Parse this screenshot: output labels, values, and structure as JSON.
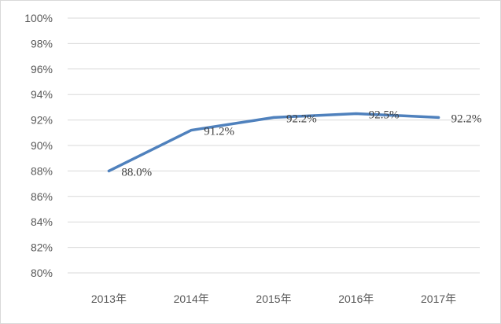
{
  "chart_data": {
    "type": "line",
    "title": "",
    "xlabel": "",
    "ylabel": "",
    "categories": [
      "2013年",
      "2014年",
      "2015年",
      "2016年",
      "2017年"
    ],
    "series": [
      {
        "values": [
          88.0,
          91.2,
          92.2,
          92.5,
          92.2
        ],
        "color": "#4f81bd"
      }
    ],
    "data_labels": [
      "88.0%",
      "91.2%",
      "92.2%",
      "92.5%",
      "92.2%"
    ],
    "ylim": [
      80,
      100
    ],
    "yticks": [
      80,
      82,
      84,
      86,
      88,
      90,
      92,
      94,
      96,
      98,
      100
    ],
    "ytick_labels": [
      "80%",
      "82%",
      "84%",
      "86%",
      "88%",
      "90%",
      "92%",
      "94%",
      "96%",
      "98%",
      "100%"
    ],
    "grid": true,
    "legend": "none"
  }
}
